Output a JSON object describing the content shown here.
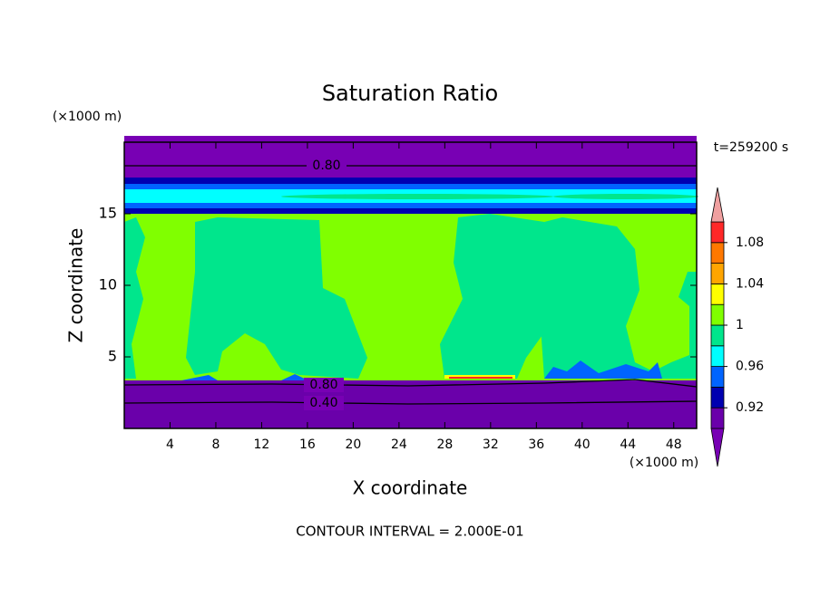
{
  "chart_data": {
    "type": "contour",
    "title": "Saturation Ratio",
    "x_label": "X coordinate",
    "y_label": "Z coordinate",
    "x_unit": "(×1000 m)",
    "y_unit": "(×1000 m)",
    "time_label": "t=259200 s",
    "footer": "CONTOUR INTERVAL = 2.000E-01",
    "xlim": [
      0,
      50
    ],
    "ylim": [
      0,
      20
    ],
    "xticks": [
      4,
      8,
      12,
      16,
      20,
      24,
      28,
      32,
      36,
      40,
      44,
      48
    ],
    "yticks": [
      5,
      10,
      15
    ],
    "colorbar": {
      "levels": [
        0.9,
        0.92,
        0.94,
        0.96,
        0.98,
        1,
        1.02,
        1.04,
        1.06,
        1.08,
        1.1
      ],
      "colors": [
        "#7800b4",
        "#6a00aa",
        "#0000b0",
        "#0064ff",
        "#00ffff",
        "#00e68c",
        "#80ff00",
        "#ffff00",
        "#ffa500",
        "#ff7800",
        "#ff2828",
        "#f0a0a0"
      ],
      "ticks": [
        0.92,
        0.96,
        1,
        1.04,
        1.08
      ]
    },
    "contours": [
      {
        "value": 0.8,
        "label": "0.80"
      },
      {
        "value": 0.8,
        "label": "0.80"
      },
      {
        "value": 0.4,
        "label": "0.40"
      }
    ]
  }
}
